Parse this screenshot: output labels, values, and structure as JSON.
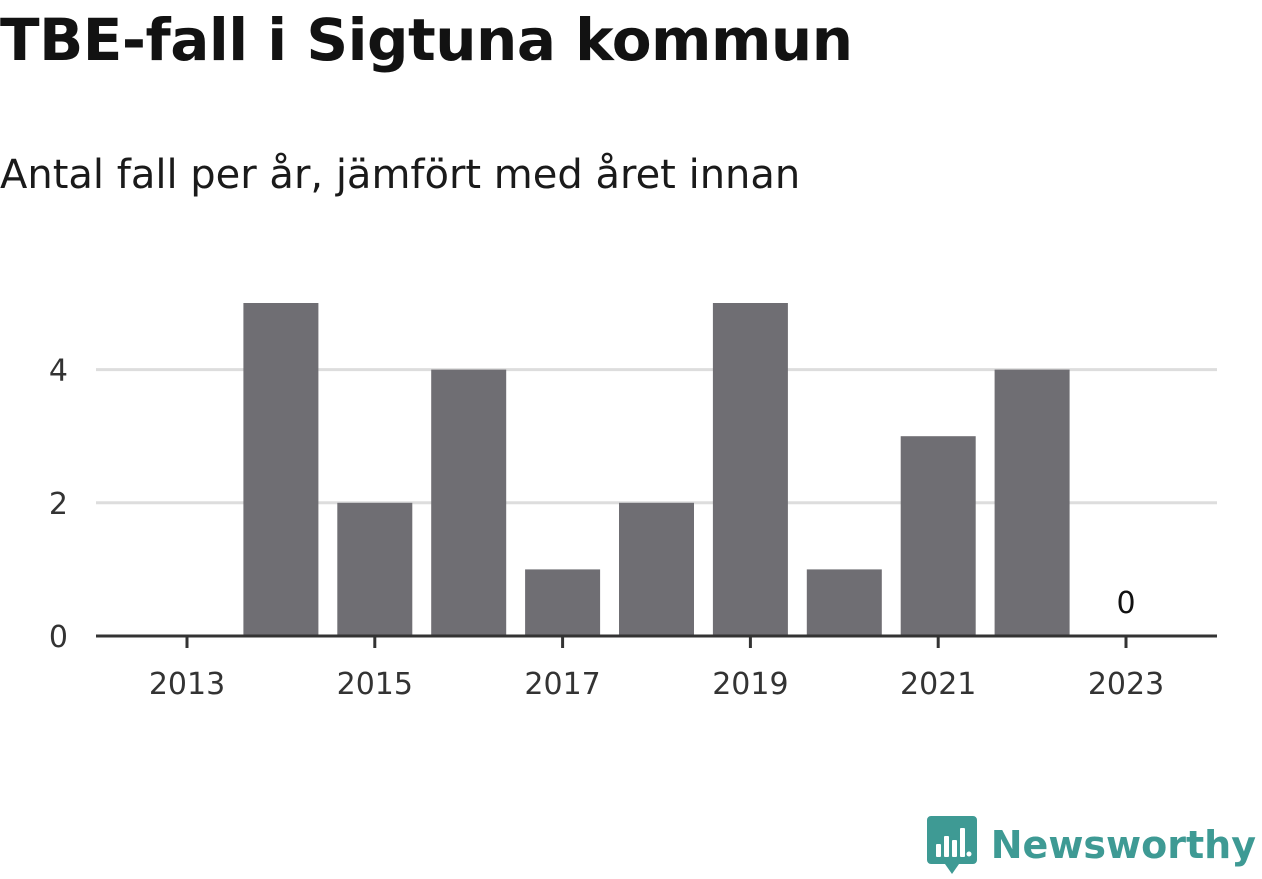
{
  "header": {
    "title": "TBE-fall i Sigtuna kommun",
    "subtitle": "Antal fall per år, jämfört med året innan"
  },
  "brand": {
    "name": "Newsworthy",
    "icon": "newsworthy-logo-icon",
    "color": "#3e9a94"
  },
  "chart_data": {
    "type": "bar",
    "categories": [
      "2013",
      "2014",
      "2015",
      "2016",
      "2017",
      "2018",
      "2019",
      "2020",
      "2021",
      "2022",
      "2023"
    ],
    "values": [
      0,
      5,
      2,
      4,
      1,
      2,
      5,
      1,
      3,
      4,
      0
    ],
    "x_tick_labels": [
      "2013",
      "2015",
      "2017",
      "2019",
      "2021",
      "2023"
    ],
    "y_ticks": [
      0,
      2,
      4
    ],
    "ylim": [
      0,
      5
    ],
    "grid": "horizontal",
    "bar_color": "#6f6e73",
    "grid_color": "#dddddd",
    "axis_color": "#333333",
    "annotations": [
      {
        "category": "2023",
        "text": "0"
      }
    ]
  }
}
